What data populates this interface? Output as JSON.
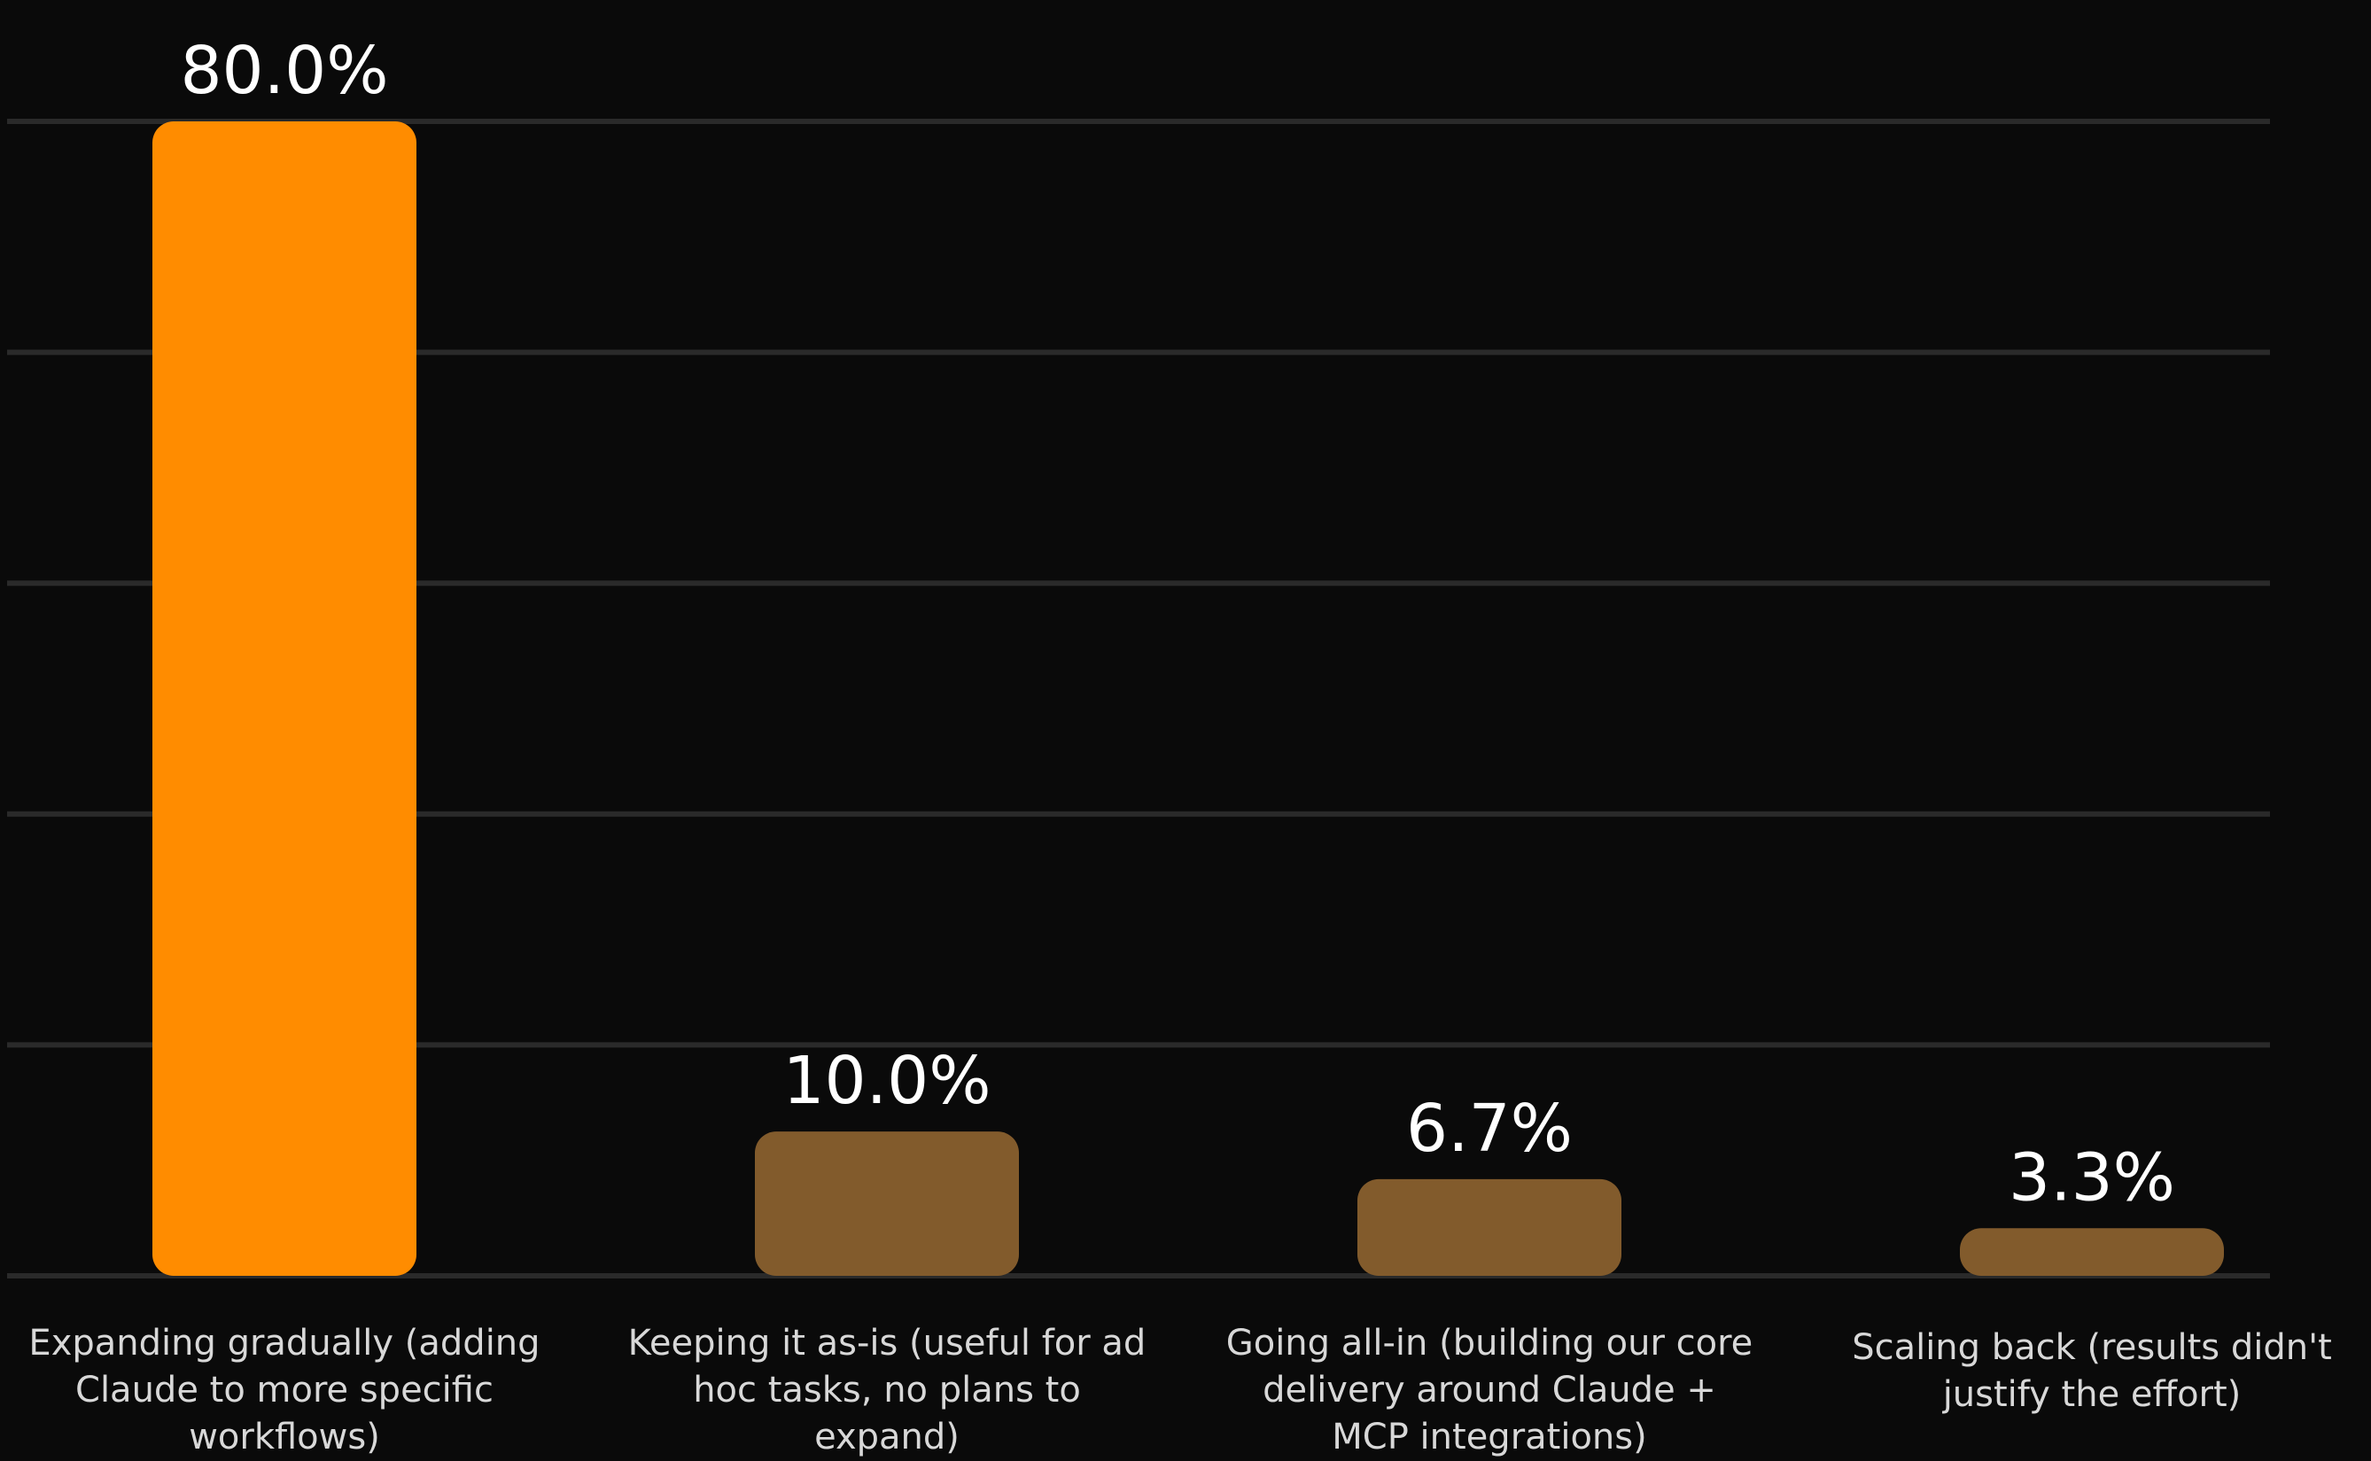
{
  "chart_data": {
    "type": "bar",
    "categories": [
      [
        "Expanding gradually (adding",
        "Claude to more specific",
        "workflows)"
      ],
      [
        "Keeping it as-is (useful for ad",
        "hoc tasks, no plans to",
        "expand)"
      ],
      [
        "Going all-in (building our core",
        "delivery around Claude +",
        "MCP integrations)"
      ],
      [
        "Scaling back (results didn't",
        "justify the effort)"
      ]
    ],
    "values": [
      80.0,
      10.0,
      6.7,
      3.3
    ],
    "value_labels": [
      "80.0%",
      "10.0%",
      "6.7%",
      "3.3%"
    ],
    "title": "",
    "xlabel": "",
    "ylabel": "",
    "ylim": [
      0,
      80
    ],
    "grid": true,
    "colors": {
      "background": "#0a0a0a",
      "highlight": "#ff8c00",
      "bar": "#825b2c",
      "grid": "#2a2a2a",
      "value_text": "#ffffff",
      "category_text": "#d8d8d8"
    },
    "highlight_index": 0
  }
}
